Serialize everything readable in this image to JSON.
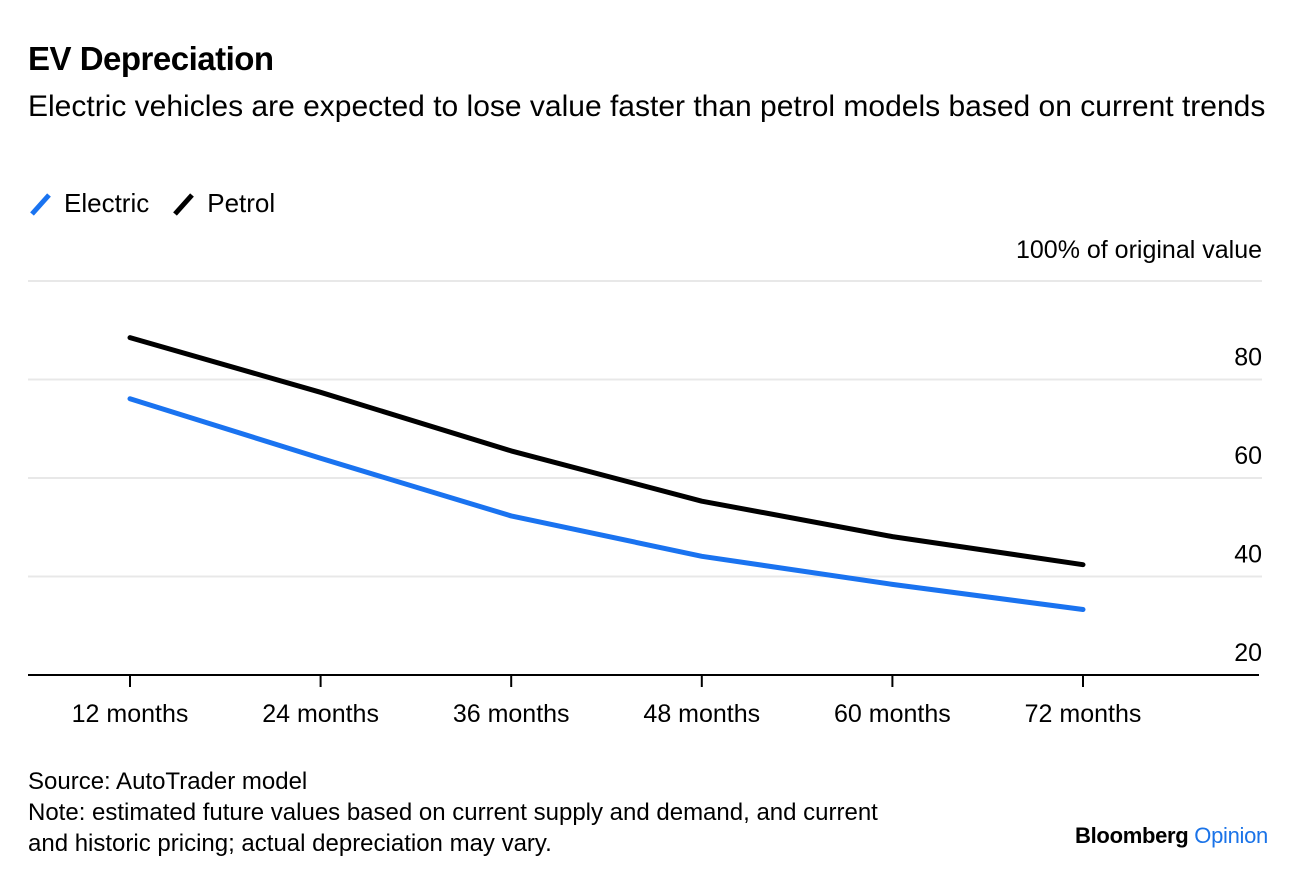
{
  "header": {
    "title": "EV Depreciation",
    "subtitle": "Electric vehicles are expected to lose value faster than petrol models based on current trends"
  },
  "legend": [
    {
      "label": "Electric",
      "color": "#1a73f0"
    },
    {
      "label": "Petrol",
      "color": "#000000"
    }
  ],
  "chart_data": {
    "type": "line",
    "title": "EV Depreciation",
    "subtitle": "Electric vehicles are expected to lose value faster than petrol models based on current trends",
    "unit_label": "100% of original value",
    "categories": [
      "12 months",
      "24 months",
      "36 months",
      "48 months",
      "60 months",
      "72 months"
    ],
    "series": [
      {
        "name": "Electric",
        "color": "#1a73f0",
        "values": [
          76.1,
          64.0,
          52.3,
          44.1,
          38.4,
          33.3
        ]
      },
      {
        "name": "Petrol",
        "color": "#000000",
        "values": [
          88.5,
          77.4,
          65.5,
          55.3,
          48.1,
          42.4
        ]
      }
    ],
    "yticks": [
      20,
      40,
      60,
      80,
      100
    ],
    "ytick_labels": [
      "20",
      "40",
      "60",
      "80"
    ],
    "ylim": [
      20,
      100
    ],
    "grid": true,
    "legend_position": "top-left",
    "xlabel": "",
    "ylabel": "100% of original value"
  },
  "footer": {
    "source": "Source: AutoTrader model",
    "note_line1": "Note: estimated future values based on current supply and demand, and current",
    "note_line2": "and historic pricing; actual depreciation may vary."
  },
  "brand": {
    "name": "Bloomberg",
    "section": "Opinion"
  }
}
